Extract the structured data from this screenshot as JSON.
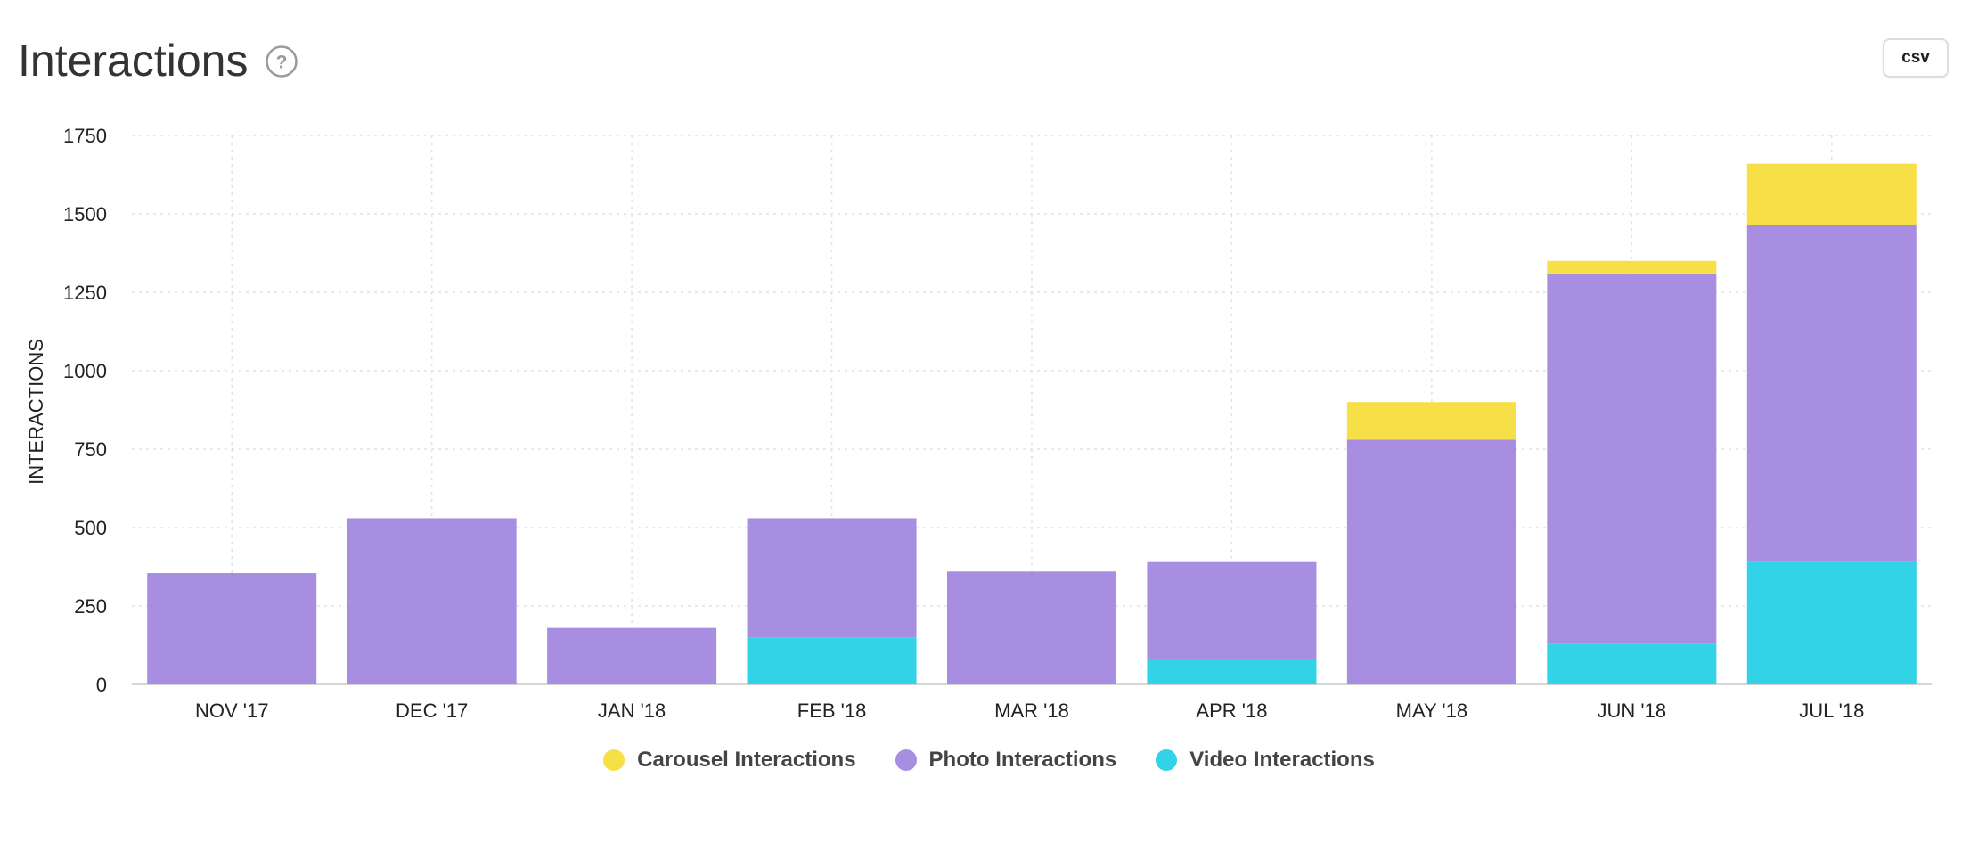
{
  "header": {
    "title": "Interactions",
    "help_icon": "question-circle-icon",
    "csv_label": "csv"
  },
  "colors": {
    "carousel": "#F7DF48",
    "photo": "#A78EE0",
    "video": "#32D3E6",
    "grid": "#e2e2e2",
    "axis_text": "#222222"
  },
  "chart_data": {
    "type": "bar",
    "stacked": true,
    "title": "Interactions",
    "xlabel": "",
    "ylabel": "INTERACTIONS",
    "ylim": [
      0,
      1750
    ],
    "yticks": [
      0,
      250,
      500,
      750,
      1000,
      1250,
      1500,
      1750
    ],
    "grid": true,
    "legend_position": "bottom",
    "categories": [
      "NOV '17",
      "DEC '17",
      "JAN '18",
      "FEB '18",
      "MAR '18",
      "APR '18",
      "MAY '18",
      "JUN '18",
      "JUL '18"
    ],
    "series": [
      {
        "name": "Video Interactions",
        "key": "video",
        "values": [
          0,
          0,
          0,
          150,
          0,
          80,
          0,
          130,
          390
        ]
      },
      {
        "name": "Photo Interactions",
        "key": "photo",
        "values": [
          355,
          530,
          180,
          380,
          360,
          310,
          780,
          1180,
          1075
        ]
      },
      {
        "name": "Carousel Interactions",
        "key": "carousel",
        "values": [
          0,
          0,
          0,
          0,
          0,
          0,
          120,
          40,
          195
        ]
      }
    ]
  },
  "legend": [
    {
      "label": "Carousel Interactions",
      "key": "carousel"
    },
    {
      "label": "Photo Interactions",
      "key": "photo"
    },
    {
      "label": "Video Interactions",
      "key": "video"
    }
  ]
}
